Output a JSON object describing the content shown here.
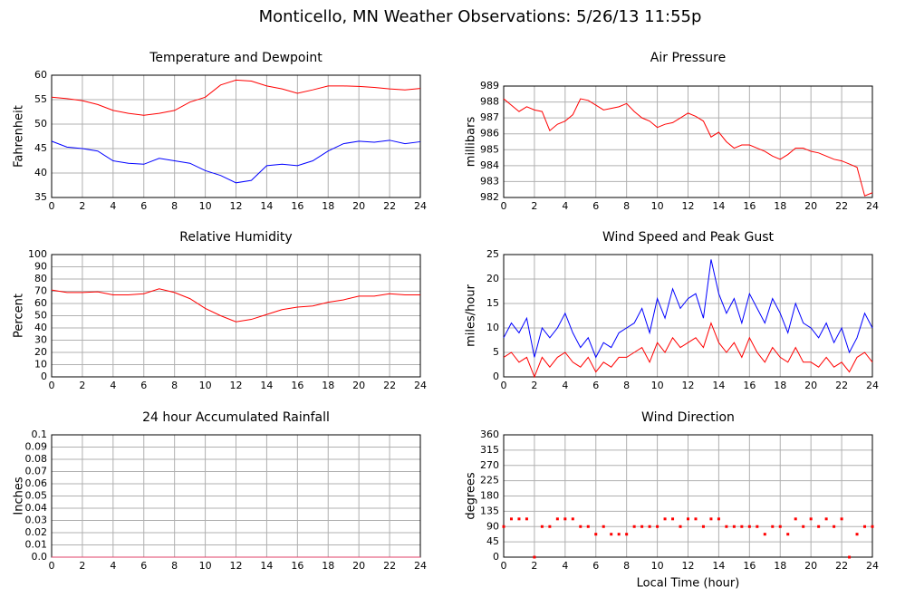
{
  "title": "Monticello, MN Weather Observations: 5/26/13 11:55p",
  "chart_data": [
    {
      "type": "line",
      "title": "Temperature and Dewpoint",
      "ylabel": "Fahrenheit",
      "x": [
        0,
        1,
        2,
        3,
        4,
        5,
        6,
        7,
        8,
        9,
        10,
        11,
        12,
        13,
        14,
        15,
        16,
        17,
        18,
        19,
        20,
        21,
        22,
        23,
        24
      ],
      "xlim": [
        0,
        24
      ],
      "xticks": [
        0,
        2,
        4,
        6,
        8,
        10,
        12,
        14,
        16,
        18,
        20,
        22,
        24
      ],
      "ylim": [
        35,
        60
      ],
      "yticks": [
        35,
        40,
        45,
        50,
        55,
        60
      ],
      "grid": true,
      "series": [
        {
          "color": "#ff0000",
          "values": [
            55.5,
            55.2,
            54.8,
            54,
            52.8,
            52.2,
            51.8,
            52.2,
            52.8,
            54.5,
            55.5,
            58,
            59,
            58.8,
            57.8,
            57.2,
            56.3,
            57,
            57.8,
            57.8,
            57.7,
            57.5,
            57.2,
            57,
            57.3
          ]
        },
        {
          "color": "#0000ff",
          "values": [
            46.5,
            45.3,
            45,
            44.5,
            42.5,
            42,
            41.8,
            43,
            42.5,
            42,
            40.5,
            39.5,
            38,
            38.5,
            41.5,
            41.8,
            41.5,
            42.5,
            44.5,
            46,
            46.5,
            46.3,
            46.7,
            46,
            46.4
          ]
        }
      ]
    },
    {
      "type": "line",
      "title": "Air Pressure",
      "ylabel": "millibars",
      "x": [
        0,
        0.5,
        1,
        1.5,
        2,
        2.5,
        3,
        3.5,
        4,
        4.5,
        5,
        5.5,
        6,
        6.5,
        7,
        7.5,
        8,
        8.5,
        9,
        9.5,
        10,
        10.5,
        11,
        11.5,
        12,
        12.5,
        13,
        13.5,
        14,
        14.5,
        15,
        15.5,
        16,
        16.5,
        17,
        17.5,
        18,
        18.5,
        19,
        19.5,
        20,
        20.5,
        21,
        21.5,
        22,
        22.5,
        23,
        23.5,
        24
      ],
      "xlim": [
        0,
        24
      ],
      "xticks": [
        0,
        2,
        4,
        6,
        8,
        10,
        12,
        14,
        16,
        18,
        20,
        22,
        24
      ],
      "ylim": [
        982,
        989
      ],
      "yticks": [
        982,
        983,
        984,
        985,
        986,
        987,
        988,
        989
      ],
      "grid": true,
      "series": [
        {
          "color": "#ff0000",
          "values": [
            988.2,
            987.8,
            987.4,
            987.7,
            987.5,
            987.4,
            986.2,
            986.6,
            986.8,
            987.2,
            988.2,
            988.1,
            987.8,
            987.5,
            987.6,
            987.7,
            987.9,
            987.4,
            987,
            986.8,
            986.4,
            986.6,
            986.7,
            987,
            987.3,
            987.1,
            986.8,
            985.8,
            986.1,
            985.5,
            985.1,
            985.3,
            985.3,
            985.1,
            984.9,
            984.6,
            984.4,
            984.7,
            985.1,
            985.1,
            984.9,
            984.8,
            984.6,
            984.4,
            984.3,
            984.1,
            983.9,
            982.1,
            982.3
          ]
        }
      ]
    },
    {
      "type": "line",
      "title": "Relative Humidity",
      "ylabel": "Percent",
      "x": [
        0,
        1,
        2,
        3,
        4,
        5,
        6,
        7,
        8,
        9,
        10,
        11,
        12,
        13,
        14,
        15,
        16,
        17,
        18,
        19,
        20,
        21,
        22,
        23,
        24
      ],
      "xlim": [
        0,
        24
      ],
      "xticks": [
        0,
        2,
        4,
        6,
        8,
        10,
        12,
        14,
        16,
        18,
        20,
        22,
        24
      ],
      "ylim": [
        0,
        100
      ],
      "yticks": [
        0,
        10,
        20,
        30,
        40,
        50,
        60,
        70,
        80,
        90,
        100
      ],
      "grid": true,
      "series": [
        {
          "color": "#ff0000",
          "values": [
            71,
            69,
            69,
            69.5,
            67,
            67,
            68,
            72,
            69,
            64,
            56,
            50,
            45,
            47,
            51,
            55,
            57,
            58,
            61,
            63,
            66,
            66,
            68,
            67,
            67
          ]
        }
      ]
    },
    {
      "type": "line",
      "title": "Wind Speed and Peak Gust",
      "ylabel": "miles/hour",
      "x": [
        0,
        0.5,
        1,
        1.5,
        2,
        2.5,
        3,
        3.5,
        4,
        4.5,
        5,
        5.5,
        6,
        6.5,
        7,
        7.5,
        8,
        8.5,
        9,
        9.5,
        10,
        10.5,
        11,
        11.5,
        12,
        12.5,
        13,
        13.5,
        14,
        14.5,
        15,
        15.5,
        16,
        16.5,
        17,
        17.5,
        18,
        18.5,
        19,
        19.5,
        20,
        20.5,
        21,
        21.5,
        22,
        22.5,
        23,
        23.5,
        24
      ],
      "xlim": [
        0,
        24
      ],
      "xticks": [
        0,
        2,
        4,
        6,
        8,
        10,
        12,
        14,
        16,
        18,
        20,
        22,
        24
      ],
      "ylim": [
        0,
        25
      ],
      "yticks": [
        0,
        5,
        10,
        15,
        20,
        25
      ],
      "grid": true,
      "series": [
        {
          "color": "#0000ff",
          "values": [
            8,
            11,
            9,
            12,
            4,
            10,
            8,
            10,
            13,
            9,
            6,
            8,
            4,
            7,
            6,
            9,
            10,
            11,
            14,
            9,
            16,
            12,
            18,
            14,
            16,
            17,
            12,
            24,
            17,
            13,
            16,
            11,
            17,
            14,
            11,
            16,
            13,
            9,
            15,
            11,
            10,
            8,
            11,
            7,
            10,
            5,
            8,
            13,
            10
          ]
        },
        {
          "color": "#ff0000",
          "values": [
            4,
            5,
            3,
            4,
            0,
            4,
            2,
            4,
            5,
            3,
            2,
            4,
            1,
            3,
            2,
            4,
            4,
            5,
            6,
            3,
            7,
            5,
            8,
            6,
            7,
            8,
            6,
            11,
            7,
            5,
            7,
            4,
            8,
            5,
            3,
            6,
            4,
            3,
            6,
            3,
            3,
            2,
            4,
            2,
            3,
            1,
            4,
            5,
            3
          ]
        }
      ]
    },
    {
      "type": "line",
      "title": "24 hour Accumulated Rainfall",
      "ylabel": "Inches",
      "x": [
        0,
        24
      ],
      "xlim": [
        0,
        24
      ],
      "xticks": [
        0,
        2,
        4,
        6,
        8,
        10,
        12,
        14,
        16,
        18,
        20,
        22,
        24
      ],
      "ylim": [
        0,
        0.1
      ],
      "yticks": [
        {
          "value": 0,
          "label": "0.0"
        },
        0.01,
        0.02,
        0.03,
        0.04,
        0.05,
        0.06,
        0.07,
        0.08,
        0.09,
        0.1
      ],
      "grid": true,
      "series": [
        {
          "color": "#e0406a",
          "values": [
            0,
            0
          ]
        }
      ]
    },
    {
      "type": "scatter",
      "title": "Wind Direction",
      "ylabel": "degrees",
      "xlabel": "Local Time (hour)",
      "x": [
        0,
        0.5,
        1,
        1.5,
        2,
        2.5,
        3,
        3.5,
        4,
        4.5,
        5,
        5.5,
        6,
        6.5,
        7,
        7.5,
        8,
        8.5,
        9,
        9.5,
        10,
        10.5,
        11,
        11.5,
        12,
        12.5,
        13,
        13.5,
        14,
        14.5,
        15,
        15.5,
        16,
        16.5,
        17,
        17.5,
        18,
        18.5,
        19,
        19.5,
        20,
        20.5,
        21,
        21.5,
        22,
        22.5,
        23,
        23.5,
        24
      ],
      "xlim": [
        0,
        24
      ],
      "xticks": [
        0,
        2,
        4,
        6,
        8,
        10,
        12,
        14,
        16,
        18,
        20,
        22,
        24
      ],
      "ylim": [
        0,
        360
      ],
      "yticks": [
        0,
        45,
        90,
        135,
        180,
        225,
        270,
        315,
        360
      ],
      "grid": true,
      "series": [
        {
          "color": "#ff0000",
          "values": [
            90,
            112.5,
            112.5,
            112.5,
            0,
            90,
            90,
            112.5,
            112.5,
            112.5,
            90,
            90,
            67.5,
            90,
            67.5,
            67.5,
            67.5,
            90,
            90,
            90,
            90,
            112.5,
            112.5,
            90,
            112.5,
            112.5,
            90,
            112.5,
            112.5,
            90,
            90,
            90,
            90,
            90,
            67.5,
            90,
            90,
            67.5,
            112.5,
            90,
            112.5,
            90,
            112.5,
            90,
            112.5,
            0,
            67.5,
            90,
            90
          ]
        }
      ]
    }
  ]
}
